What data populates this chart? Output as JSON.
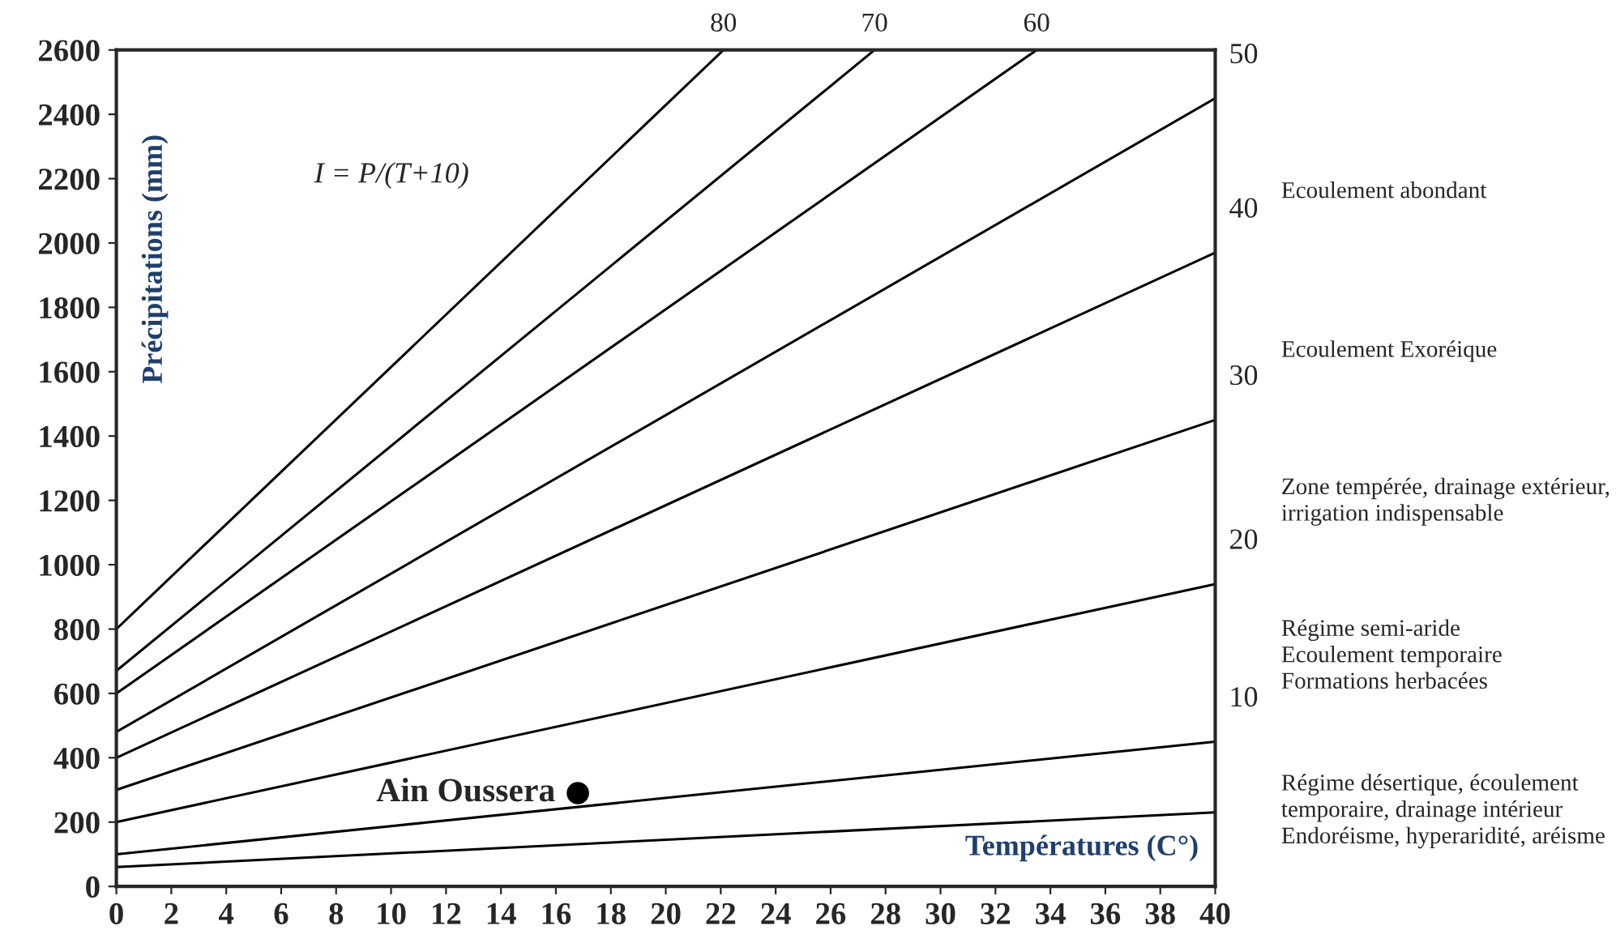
{
  "chart_data": {
    "type": "line",
    "xlabel": "Températures (C°)",
    "ylabel": "Précipitations (mm)",
    "xlim": [
      0,
      40
    ],
    "ylim": [
      0,
      2600
    ],
    "xticks": [
      0,
      2,
      4,
      6,
      8,
      10,
      12,
      14,
      16,
      18,
      20,
      22,
      24,
      26,
      28,
      30,
      32,
      34,
      36,
      38,
      40
    ],
    "yticks": [
      0,
      200,
      400,
      600,
      800,
      1000,
      1200,
      1400,
      1600,
      1800,
      2000,
      2200,
      2400,
      2600
    ],
    "grid": false,
    "legend": false,
    "marker": "none",
    "line_style": "solid",
    "series": [
      {
        "name": "80",
        "color": "#000000",
        "x": [
          0,
          22.1
        ],
        "values": [
          800,
          2600
        ]
      },
      {
        "name": "70",
        "color": "#000000",
        "x": [
          0,
          27.6
        ],
        "values": [
          670,
          2600
        ]
      },
      {
        "name": "60",
        "color": "#000000",
        "x": [
          0,
          33.5
        ],
        "values": [
          600,
          2600
        ]
      },
      {
        "name": "50",
        "color": "#000000",
        "x": [
          0,
          40
        ],
        "values": [
          480,
          2450
        ]
      },
      {
        "name": "40",
        "color": "#000000",
        "x": [
          0,
          40
        ],
        "values": [
          400,
          1970
        ]
      },
      {
        "name": "30",
        "color": "#000000",
        "x": [
          0,
          40
        ],
        "values": [
          300,
          1450
        ]
      },
      {
        "name": "20",
        "color": "#000000",
        "x": [
          0,
          40
        ],
        "values": [
          200,
          940
        ]
      },
      {
        "name": "10",
        "color": "#000000",
        "x": [
          0,
          40
        ],
        "values": [
          100,
          450
        ]
      },
      {
        "color": "#000000",
        "x": [
          0,
          40
        ],
        "values": [
          60,
          230
        ]
      },
      {
        "name": "Ain Oussera",
        "type": "scatter",
        "marker": "circle",
        "color": "#000000",
        "x": [
          16.8
        ],
        "values": [
          290
        ]
      }
    ],
    "annotations": [
      "I = P/(T+10)",
      "Ecoulement abondant",
      "Ecoulement Exoréique",
      "Zone tempérée, drainage extérieur,\nirrigation indispensable",
      "Régime semi-aride\nEcoulement temporaire\nFormations herbacées",
      "Régime désertique, écoulement\ntemporaire, drainage intérieur\nEndoréisme, hyperaridité, aréisme"
    ]
  }
}
